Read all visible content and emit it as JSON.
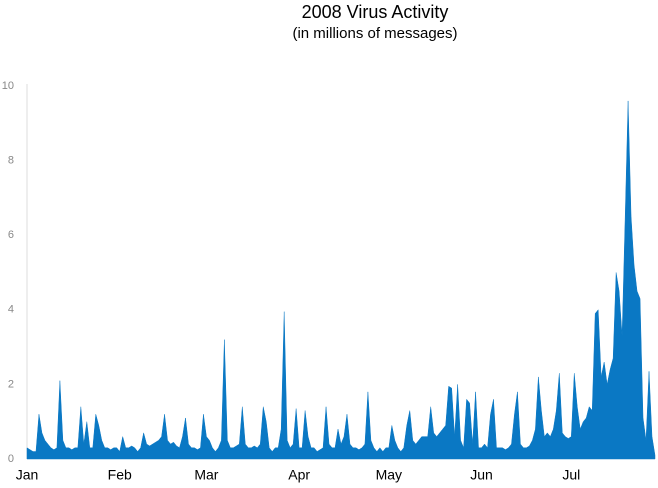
{
  "chart_data": {
    "type": "area",
    "title": "2008 Virus Activity",
    "subtitle": "(in millions of messages)",
    "categories": [
      "Jan",
      null,
      null,
      null,
      null,
      null,
      null,
      null,
      null,
      null,
      null,
      null,
      null,
      null,
      null,
      null,
      null,
      null,
      null,
      null,
      null,
      null,
      null,
      null,
      null,
      null,
      null,
      null,
      null,
      null,
      null,
      "Feb",
      null,
      null,
      null,
      null,
      null,
      null,
      null,
      null,
      null,
      null,
      null,
      null,
      null,
      null,
      null,
      null,
      null,
      null,
      null,
      null,
      null,
      null,
      null,
      null,
      null,
      null,
      null,
      null,
      "Mar",
      null,
      null,
      null,
      null,
      null,
      null,
      null,
      null,
      null,
      null,
      null,
      null,
      null,
      null,
      null,
      null,
      null,
      null,
      null,
      null,
      null,
      null,
      null,
      null,
      null,
      null,
      null,
      null,
      null,
      null,
      "Apr",
      null,
      null,
      null,
      null,
      null,
      null,
      null,
      null,
      null,
      null,
      null,
      null,
      null,
      null,
      null,
      null,
      null,
      null,
      null,
      null,
      null,
      null,
      null,
      null,
      null,
      null,
      null,
      null,
      null,
      "May",
      null,
      null,
      null,
      null,
      null,
      null,
      null,
      null,
      null,
      null,
      null,
      null,
      null,
      null,
      null,
      null,
      null,
      null,
      null,
      null,
      null,
      null,
      null,
      null,
      null,
      null,
      null,
      null,
      null,
      null,
      "Jun",
      null,
      null,
      null,
      null,
      null,
      null,
      null,
      null,
      null,
      null,
      null,
      null,
      null,
      null,
      null,
      null,
      null,
      null,
      null,
      null,
      null,
      null,
      null,
      null,
      null,
      null,
      null,
      null,
      null,
      "Jul",
      null,
      null,
      null,
      null,
      null,
      null,
      null,
      null,
      null,
      null,
      null,
      null,
      null,
      null,
      null,
      null,
      null,
      null,
      null,
      null,
      null,
      null,
      null,
      null,
      null,
      null,
      null,
      null
    ],
    "values": [
      0.3,
      0.25,
      0.2,
      0.2,
      1.2,
      0.7,
      0.5,
      0.4,
      0.3,
      0.25,
      0.3,
      2.1,
      0.5,
      0.3,
      0.3,
      0.25,
      0.3,
      0.3,
      1.4,
      0.4,
      1.0,
      0.3,
      0.3,
      1.2,
      0.9,
      0.5,
      0.3,
      0.3,
      0.25,
      0.3,
      0.3,
      0.2,
      0.6,
      0.3,
      0.3,
      0.35,
      0.3,
      0.2,
      0.3,
      0.7,
      0.4,
      0.35,
      0.4,
      0.45,
      0.5,
      0.6,
      1.2,
      0.5,
      0.4,
      0.45,
      0.35,
      0.3,
      0.6,
      1.1,
      0.4,
      0.3,
      0.3,
      0.25,
      0.3,
      1.2,
      0.6,
      0.5,
      0.3,
      0.2,
      0.3,
      0.5,
      3.2,
      0.5,
      0.3,
      0.3,
      0.35,
      0.4,
      1.4,
      0.4,
      0.3,
      0.3,
      0.35,
      0.3,
      0.4,
      1.4,
      1.0,
      0.3,
      0.2,
      0.3,
      0.3,
      0.8,
      3.95,
      0.5,
      0.3,
      0.4,
      1.35,
      0.3,
      0.3,
      1.3,
      0.6,
      0.3,
      0.3,
      0.2,
      0.25,
      0.3,
      1.4,
      0.4,
      0.3,
      0.3,
      0.8,
      0.4,
      0.6,
      1.2,
      0.4,
      0.3,
      0.3,
      0.25,
      0.3,
      0.4,
      1.8,
      0.5,
      0.3,
      0.2,
      0.3,
      0.2,
      0.3,
      0.3,
      0.9,
      0.5,
      0.3,
      0.2,
      0.3,
      0.9,
      1.3,
      0.5,
      0.4,
      0.5,
      0.6,
      0.6,
      0.6,
      1.4,
      0.7,
      0.6,
      0.7,
      0.8,
      0.9,
      1.95,
      1.9,
      0.6,
      2.0,
      0.5,
      0.3,
      1.6,
      1.5,
      0.4,
      1.8,
      0.3,
      0.3,
      0.4,
      0.3,
      1.2,
      1.6,
      0.3,
      0.3,
      0.3,
      0.25,
      0.3,
      0.4,
      1.2,
      1.8,
      0.4,
      0.3,
      0.3,
      0.35,
      0.5,
      0.8,
      2.2,
      1.3,
      0.6,
      0.7,
      0.6,
      0.8,
      1.3,
      2.3,
      0.7,
      0.6,
      0.55,
      0.6,
      2.3,
      1.4,
      0.8,
      1.0,
      1.1,
      1.4,
      1.3,
      3.9,
      4.0,
      2.2,
      2.6,
      2.0,
      2.4,
      2.7,
      5.0,
      4.5,
      3.3,
      6.4,
      9.6,
      6.5,
      5.2,
      4.5,
      4.3,
      1.1,
      0.5,
      2.35,
      0.6,
      0.1
    ],
    "color": "#0a78c4",
    "ylim": [
      0,
      10
    ],
    "yticks": [
      0,
      2,
      4,
      6,
      8,
      10
    ],
    "grid": false
  }
}
